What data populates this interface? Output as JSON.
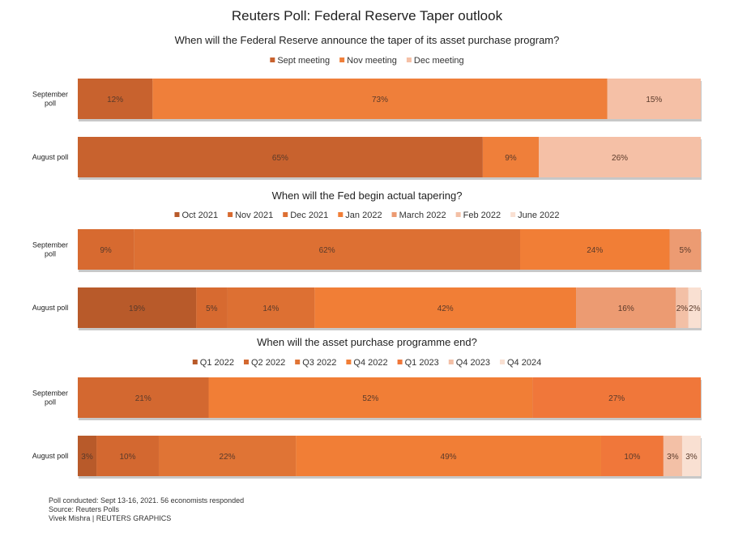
{
  "title": "Reuters Poll: Federal Reserve Taper outlook",
  "colors": {
    "bar_shadow": "#c8c8c8",
    "label_text": "#5a3a2a"
  },
  "chart_data": [
    {
      "type": "bar",
      "orientation": "horizontal",
      "stacked": true,
      "title": "When will the Federal Reserve announce the taper of its asset purchase program?",
      "categories": [
        "September poll",
        "August poll"
      ],
      "series": [
        {
          "name": "Sept meeting",
          "color": "#c8622e",
          "values": [
            12,
            65
          ],
          "labels": [
            "12%",
            "65%"
          ]
        },
        {
          "name": "Nov meeting",
          "color": "#ef7f3a",
          "values": [
            73,
            9
          ],
          "labels": [
            "73%",
            "9%"
          ]
        },
        {
          "name": "Dec meeting",
          "color": "#f5c0a6",
          "values": [
            15,
            26
          ],
          "labels": [
            "15%",
            "26%"
          ]
        }
      ],
      "legend": "top"
    },
    {
      "type": "bar",
      "orientation": "horizontal",
      "stacked": true,
      "title": "When will the Fed begin actual tapering?",
      "categories": [
        "September poll",
        "August poll"
      ],
      "series": [
        {
          "name": "Oct 2021",
          "color": "#b85a2a",
          "values": [
            0,
            19
          ],
          "labels": [
            "",
            "19%"
          ]
        },
        {
          "name": "Nov 2021",
          "color": "#d76a30",
          "values": [
            9,
            5
          ],
          "labels": [
            "9%",
            "5%"
          ]
        },
        {
          "name": "Dec 2021",
          "color": "#dd7033",
          "values": [
            62,
            14
          ],
          "labels": [
            "62%",
            "14%"
          ]
        },
        {
          "name": "Jan 2022",
          "color": "#f17e36",
          "values": [
            24,
            42
          ],
          "labels": [
            "24%",
            "42%"
          ]
        },
        {
          "name": "March 2022",
          "color": "#ec9b72",
          "values": [
            5,
            16
          ],
          "labels": [
            "5%",
            "16%"
          ]
        },
        {
          "name": "Feb 2022",
          "color": "#f3c0a6",
          "values": [
            0,
            2
          ],
          "labels": [
            "",
            "2%"
          ]
        },
        {
          "name": "June 2022",
          "color": "#f9e0d2",
          "values": [
            0,
            2
          ],
          "labels": [
            "",
            "2%"
          ]
        }
      ],
      "legend": "top"
    },
    {
      "type": "bar",
      "orientation": "horizontal",
      "stacked": true,
      "title": "When will the asset purchase programme end?",
      "categories": [
        "September poll",
        "August poll"
      ],
      "series": [
        {
          "name": "Q1 2022",
          "color": "#b85a2a",
          "values": [
            0,
            3
          ],
          "labels": [
            "",
            "3%"
          ]
        },
        {
          "name": "Q2 2022",
          "color": "#d36830",
          "values": [
            21,
            10
          ],
          "labels": [
            "21%",
            "10%"
          ]
        },
        {
          "name": "Q3 2022",
          "color": "#e07435",
          "values": [
            0,
            22
          ],
          "labels": [
            "",
            "22%"
          ]
        },
        {
          "name": "Q4 2022",
          "color": "#f17e36",
          "values": [
            52,
            49
          ],
          "labels": [
            "52%",
            "49%"
          ]
        },
        {
          "name": "Q1 2023",
          "color": "#f0773a",
          "values": [
            27,
            10
          ],
          "labels": [
            "27%",
            "10%"
          ]
        },
        {
          "name": "Q4 2023",
          "color": "#f3c0a6",
          "values": [
            0,
            3
          ],
          "labels": [
            "",
            "3%"
          ]
        },
        {
          "name": "Q4 2024",
          "color": "#f9e0d2",
          "values": [
            0,
            3
          ],
          "labels": [
            "",
            "3%"
          ]
        }
      ],
      "legend": "top"
    }
  ],
  "footer": [
    "Poll conducted: Sept 13-16, 2021. 56 economists responded",
    "Source: Reuters Polls",
    "Vivek Mishra | REUTERS GRAPHICS"
  ]
}
